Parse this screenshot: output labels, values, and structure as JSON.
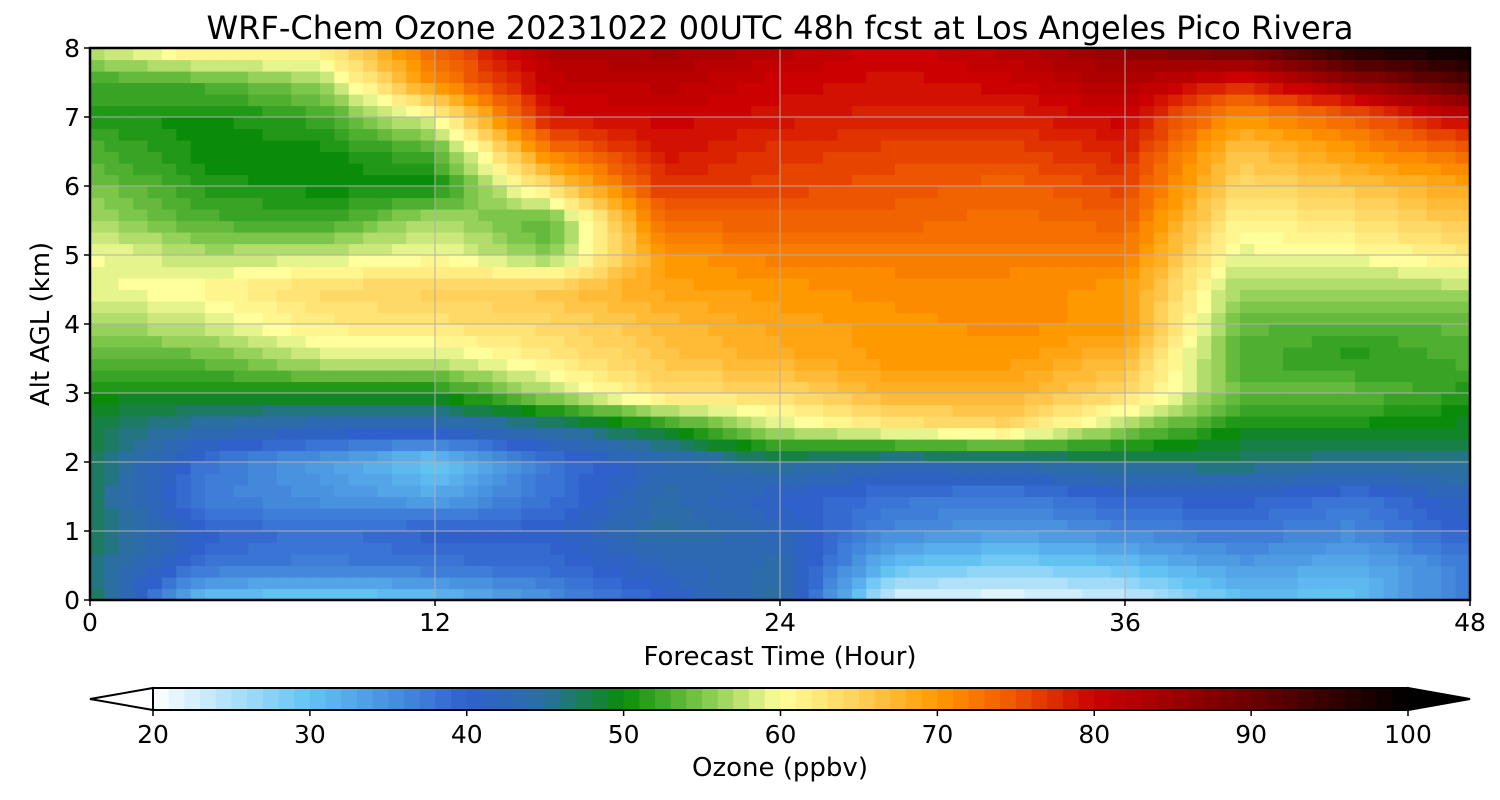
{
  "chart_data": {
    "type": "heatmap",
    "title": "WRF-Chem Ozone  20231022 00UTC 48h fcst at Los Angeles Pico Rivera",
    "xlabel": "Forecast Time (Hour)",
    "ylabel": "Alt AGL (km)",
    "xlim": [
      0,
      48
    ],
    "ylim": [
      0,
      8
    ],
    "x_ticks": [
      "0",
      "12",
      "24",
      "36",
      "48"
    ],
    "y_ticks": [
      "0",
      "1",
      "2",
      "3",
      "4",
      "5",
      "6",
      "7",
      "8"
    ],
    "grid": true,
    "colorbar": {
      "label": "Ozone  (ppbv)",
      "min": 20,
      "max": 100,
      "ticks": [
        "20",
        "30",
        "40",
        "50",
        "60",
        "70",
        "80",
        "90",
        "100"
      ],
      "extend": "both",
      "color_stops": [
        {
          "value": 20,
          "color": "#ffffff"
        },
        {
          "value": 30,
          "color": "#62c3f3"
        },
        {
          "value": 40,
          "color": "#3060cc"
        },
        {
          "value": 45,
          "color": "#2a6fa0"
        },
        {
          "value": 50,
          "color": "#0a8c0a"
        },
        {
          "value": 55,
          "color": "#7cc64a"
        },
        {
          "value": 60,
          "color": "#ffff9c"
        },
        {
          "value": 65,
          "color": "#ffd05a"
        },
        {
          "value": 70,
          "color": "#ff9900"
        },
        {
          "value": 75,
          "color": "#ee5500"
        },
        {
          "value": 80,
          "color": "#cc0000"
        },
        {
          "value": 90,
          "color": "#6a0000"
        },
        {
          "value": 100,
          "color": "#000000"
        }
      ]
    },
    "x": [
      0,
      4,
      8,
      12,
      16,
      20,
      24,
      28,
      32,
      36,
      40,
      44,
      48
    ],
    "y": [
      0,
      0.5,
      1,
      1.5,
      2,
      2.5,
      3,
      3.5,
      4,
      4.5,
      5,
      5.5,
      6,
      6.5,
      7,
      7.5,
      8
    ],
    "z": [
      [
        48,
        30,
        28,
        30,
        35,
        40,
        45,
        22,
        21,
        23,
        30,
        30,
        38
      ],
      [
        46,
        38,
        37,
        38,
        39,
        42,
        44,
        30,
        28,
        30,
        34,
        32,
        37
      ],
      [
        48,
        40,
        38,
        40,
        40,
        45,
        42,
        36,
        34,
        36,
        38,
        36,
        40
      ],
      [
        47,
        37,
        35,
        33,
        38,
        44,
        40,
        38,
        37,
        40,
        40,
        38,
        42
      ],
      [
        48,
        38,
        34,
        29,
        38,
        42,
        46,
        43,
        44,
        46,
        47,
        45,
        46
      ],
      [
        48,
        44,
        42,
        42,
        45,
        50,
        58,
        62,
        64,
        56,
        50,
        50,
        49
      ],
      [
        50,
        50,
        50,
        50,
        57,
        64,
        64,
        68,
        68,
        64,
        54,
        54,
        51
      ],
      [
        53,
        54,
        58,
        58,
        62,
        66,
        68,
        70,
        70,
        67,
        53,
        51,
        53
      ],
      [
        56,
        58,
        62,
        63,
        64,
        67,
        69,
        70,
        71,
        70,
        54,
        53,
        54
      ],
      [
        59,
        61,
        64,
        65,
        66,
        69,
        70,
        71,
        71,
        70,
        56,
        56,
        57
      ],
      [
        60,
        57,
        58,
        60,
        55,
        70,
        72,
        72,
        72,
        72,
        59,
        60,
        62
      ],
      [
        57,
        53,
        52,
        57,
        53,
        74,
        74,
        74,
        73,
        74,
        61,
        63,
        66
      ],
      [
        55,
        51,
        50,
        50,
        64,
        77,
        76,
        75,
        74,
        76,
        64,
        66,
        69
      ],
      [
        53,
        50,
        50,
        53,
        72,
        79,
        77,
        76,
        76,
        78,
        66,
        70,
        74
      ],
      [
        51,
        50,
        52,
        60,
        79,
        80,
        79,
        78,
        78,
        80,
        70,
        74,
        81
      ],
      [
        52,
        53,
        56,
        71,
        81,
        82,
        80,
        79,
        80,
        83,
        78,
        85,
        92
      ],
      [
        58,
        63,
        62,
        74,
        83,
        84,
        82,
        80,
        82,
        86,
        90,
        98,
        100
      ]
    ]
  }
}
